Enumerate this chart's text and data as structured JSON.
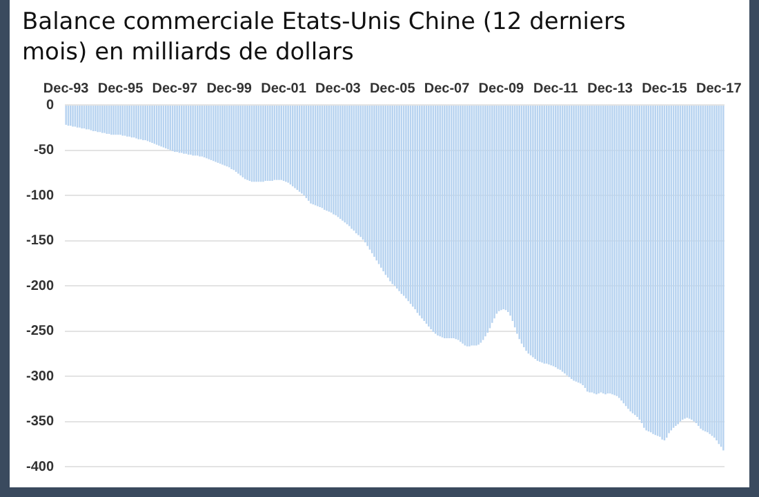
{
  "chart_data": {
    "type": "bar",
    "title": "Balance commerciale Etats-Unis Chine (12 derniers mois) en milliards de dollars",
    "categories": [
      "Dec-93",
      null,
      null,
      null,
      null,
      null,
      null,
      null,
      null,
      null,
      null,
      null,
      null,
      null,
      null,
      null,
      null,
      null,
      null,
      null,
      null,
      null,
      null,
      null,
      "Dec-95",
      null,
      null,
      null,
      null,
      null,
      null,
      null,
      null,
      null,
      null,
      null,
      null,
      null,
      null,
      null,
      null,
      null,
      null,
      null,
      null,
      null,
      null,
      null,
      "Dec-97",
      null,
      null,
      null,
      null,
      null,
      null,
      null,
      null,
      null,
      null,
      null,
      null,
      null,
      null,
      null,
      null,
      null,
      null,
      null,
      null,
      null,
      null,
      null,
      "Dec-99",
      null,
      null,
      null,
      null,
      null,
      null,
      null,
      null,
      null,
      null,
      null,
      null,
      null,
      null,
      null,
      null,
      null,
      null,
      null,
      null,
      null,
      null,
      null,
      "Dec-01",
      null,
      null,
      null,
      null,
      null,
      null,
      null,
      null,
      null,
      null,
      null,
      null,
      null,
      null,
      null,
      null,
      null,
      null,
      null,
      null,
      null,
      null,
      null,
      "Dec-03",
      null,
      null,
      null,
      null,
      null,
      null,
      null,
      null,
      null,
      null,
      null,
      null,
      null,
      null,
      null,
      null,
      null,
      null,
      null,
      null,
      null,
      null,
      null,
      "Dec-05",
      null,
      null,
      null,
      null,
      null,
      null,
      null,
      null,
      null,
      null,
      null,
      null,
      null,
      null,
      null,
      null,
      null,
      null,
      null,
      null,
      null,
      null,
      null,
      "Dec-07",
      null,
      null,
      null,
      null,
      null,
      null,
      null,
      null,
      null,
      null,
      null,
      null,
      null,
      null,
      null,
      null,
      null,
      null,
      null,
      null,
      null,
      null,
      null,
      "Dec-09",
      null,
      null,
      null,
      null,
      null,
      null,
      null,
      null,
      null,
      null,
      null,
      null,
      null,
      null,
      null,
      null,
      null,
      null,
      null,
      null,
      null,
      null,
      null,
      "Dec-11",
      null,
      null,
      null,
      null,
      null,
      null,
      null,
      null,
      null,
      null,
      null,
      null,
      null,
      null,
      null,
      null,
      null,
      null,
      null,
      null,
      null,
      null,
      null,
      "Dec-13",
      null,
      null,
      null,
      null,
      null,
      null,
      null,
      null,
      null,
      null,
      null,
      null,
      null,
      null,
      null,
      null,
      null,
      null,
      null,
      null,
      null,
      null,
      null,
      "Dec-15",
      null,
      null,
      null,
      null,
      null,
      null,
      null,
      null,
      null,
      null,
      null,
      null,
      null,
      null,
      null,
      null,
      null,
      null,
      null,
      null,
      null,
      null,
      null,
      "Dec-17",
      null,
      null
    ],
    "values": [
      -22,
      -23,
      -23,
      -24,
      -24,
      -25,
      -25,
      -26,
      -26,
      -27,
      -27,
      -28,
      -29,
      -29,
      -30,
      -30,
      -31,
      -31,
      -32,
      -32,
      -33,
      -33,
      -33,
      -33,
      -33,
      -34,
      -34,
      -35,
      -35,
      -36,
      -36,
      -37,
      -38,
      -38,
      -39,
      -39,
      -40,
      -41,
      -42,
      -43,
      -44,
      -45,
      -46,
      -47,
      -48,
      -49,
      -50,
      -51,
      -52,
      -52,
      -53,
      -53,
      -54,
      -54,
      -55,
      -55,
      -56,
      -56,
      -56,
      -57,
      -57,
      -58,
      -59,
      -60,
      -61,
      -62,
      -63,
      -64,
      -65,
      -66,
      -67,
      -68,
      -69,
      -71,
      -72,
      -74,
      -76,
      -78,
      -80,
      -82,
      -83,
      -84,
      -85,
      -85,
      -85,
      -85,
      -85,
      -85,
      -84,
      -84,
      -84,
      -84,
      -83,
      -83,
      -83,
      -83,
      -84,
      -85,
      -86,
      -88,
      -90,
      -92,
      -94,
      -96,
      -98,
      -100,
      -103,
      -106,
      -109,
      -110,
      -111,
      -112,
      -113,
      -114,
      -116,
      -117,
      -118,
      -119,
      -121,
      -122,
      -124,
      -126,
      -128,
      -130,
      -132,
      -134,
      -137,
      -139,
      -142,
      -144,
      -146,
      -149,
      -152,
      -156,
      -160,
      -164,
      -168,
      -172,
      -176,
      -180,
      -184,
      -188,
      -191,
      -195,
      -198,
      -200,
      -203,
      -206,
      -209,
      -211,
      -214,
      -217,
      -220,
      -223,
      -226,
      -230,
      -233,
      -236,
      -239,
      -242,
      -245,
      -248,
      -251,
      -253,
      -255,
      -256,
      -257,
      -258,
      -258,
      -258,
      -258,
      -258,
      -259,
      -260,
      -262,
      -264,
      -266,
      -267,
      -267,
      -266,
      -266,
      -266,
      -265,
      -263,
      -260,
      -256,
      -252,
      -247,
      -241,
      -236,
      -231,
      -228,
      -227,
      -226,
      -227,
      -229,
      -233,
      -239,
      -246,
      -253,
      -259,
      -264,
      -268,
      -272,
      -275,
      -277,
      -279,
      -281,
      -283,
      -284,
      -285,
      -286,
      -286,
      -287,
      -288,
      -289,
      -290,
      -292,
      -293,
      -295,
      -297,
      -299,
      -301,
      -303,
      -305,
      -306,
      -307,
      -308,
      -310,
      -313,
      -317,
      -318,
      -318,
      -319,
      -320,
      -319,
      -318,
      -319,
      -320,
      -319,
      -319,
      -320,
      -321,
      -322,
      -324,
      -327,
      -330,
      -333,
      -336,
      -339,
      -341,
      -343,
      -345,
      -348,
      -352,
      -357,
      -360,
      -361,
      -362,
      -364,
      -365,
      -366,
      -367,
      -370,
      -371,
      -368,
      -363,
      -360,
      -357,
      -355,
      -353,
      -350,
      -348,
      -347,
      -346,
      -347,
      -348,
      -350,
      -352,
      -355,
      -358,
      -360,
      -361,
      -362,
      -364,
      -366,
      -368,
      -371,
      -375,
      -378,
      -382
    ],
    "color": "#b7d3f0",
    "ylim": [
      -400,
      0
    ],
    "yticks": [
      0,
      -50,
      -100,
      -150,
      -200,
      -250,
      -300,
      -350,
      -400
    ],
    "grid": "y"
  }
}
